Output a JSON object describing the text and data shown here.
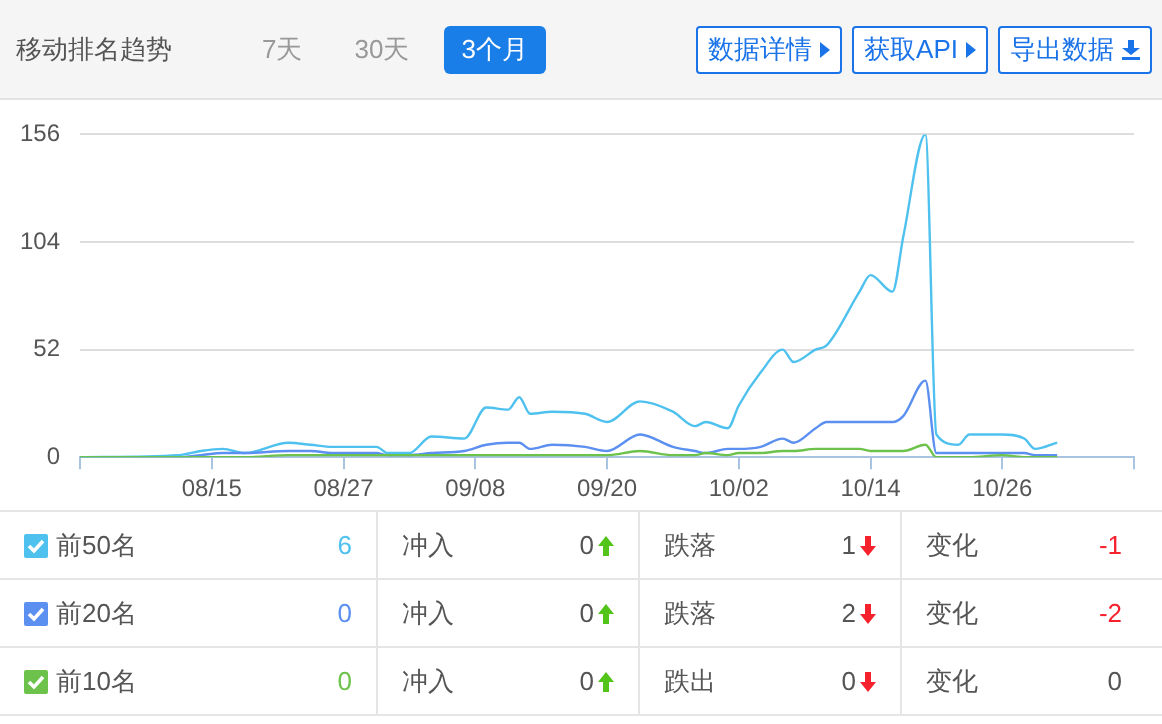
{
  "chart_data": {
    "type": "line",
    "title": "移动排名趋势",
    "annotations": [
      "7天",
      "30天",
      "3个月",
      "数据详情",
      "获取API",
      "导出数据",
      "6",
      "冲入",
      "0",
      "跌落",
      "1",
      "变化",
      "-1",
      "0",
      "冲入",
      "0",
      "跌落",
      "2",
      "变化",
      "-2",
      "0",
      "冲入",
      "0",
      "跌出",
      "0",
      "变化",
      "0"
    ],
    "x": [
      "--08-03",
      "--08-12",
      "--08-14",
      "--08-16",
      "--08-18",
      "--08-22",
      "--08-24",
      "--08-26",
      "--08-30",
      "--08-31",
      "--09-02",
      "--09-04",
      "--09-07",
      "--09-09",
      "--09-11",
      "--09-12",
      "--09-13",
      "--09-15",
      "--09-18",
      "--09-20",
      "--09-23",
      "--09-26",
      "--09-28",
      "--09-29",
      "--10-01",
      "--10-02",
      "--10-04",
      "--10-06",
      "--10-07",
      "--10-09",
      "--10-10",
      "--10-13",
      "--10-14",
      "--10-16",
      "--10-17",
      "--10-19",
      "--10-20",
      "--10-22",
      "--10-23",
      "--10-26",
      "--10-28",
      "--10-29",
      "--10-31"
    ],
    "series": [
      {
        "name": "前50名",
        "color": "#4ec1ef",
        "values": [
          0,
          1,
          3,
          4,
          2,
          7,
          6,
          5,
          5,
          2,
          2,
          10,
          9,
          24,
          23,
          29,
          21,
          22,
          21,
          17,
          27,
          22,
          15,
          17,
          14,
          25,
          41,
          52,
          46,
          52,
          54,
          80,
          88,
          80,
          107,
          156,
          11,
          6,
          11,
          11,
          9,
          4,
          7
        ]
      },
      {
        "name": "前20名",
        "color": "#5b8ff0",
        "values": [
          0,
          0,
          1,
          2,
          2,
          3,
          3,
          2,
          2,
          1,
          1,
          2,
          3,
          6,
          7,
          7,
          4,
          6,
          5,
          3,
          11,
          5,
          3,
          2,
          4,
          4,
          5,
          9,
          7,
          14,
          17,
          17,
          17,
          17,
          20,
          37,
          2,
          2,
          2,
          2,
          2,
          1,
          1
        ]
      },
      {
        "name": "前10名",
        "color": "#6cc24a",
        "values": [
          0,
          0,
          0,
          0,
          0,
          1,
          1,
          1,
          1,
          1,
          1,
          1,
          1,
          1,
          1,
          1,
          1,
          1,
          1,
          1,
          3,
          1,
          1,
          2,
          1,
          2,
          2,
          3,
          3,
          4,
          4,
          4,
          3,
          3,
          3,
          6,
          0,
          0,
          0,
          1,
          0,
          0,
          0
        ]
      }
    ],
    "xlim": [
      "--08-03",
      "--11-07"
    ],
    "xticks": [
      {
        "value": "--08-03",
        "label": null
      },
      {
        "value": "--08-15",
        "label": "08/15"
      },
      {
        "value": "--08-27",
        "label": "08/27"
      },
      {
        "value": "--09-08",
        "label": "09/08"
      },
      {
        "value": "--09-20",
        "label": "09/20"
      },
      {
        "value": "--10-02",
        "label": "10/02"
      },
      {
        "value": "--10-14",
        "label": "10/14"
      },
      {
        "value": "--10-26",
        "label": "10/26"
      },
      {
        "value": "--11-07",
        "label": null
      }
    ],
    "ylim": [
      0,
      156
    ],
    "yticks": [
      0,
      52,
      104,
      156
    ],
    "grid": "y",
    "legend": "bottom",
    "marker": "none",
    "line_style": "solid"
  }
}
